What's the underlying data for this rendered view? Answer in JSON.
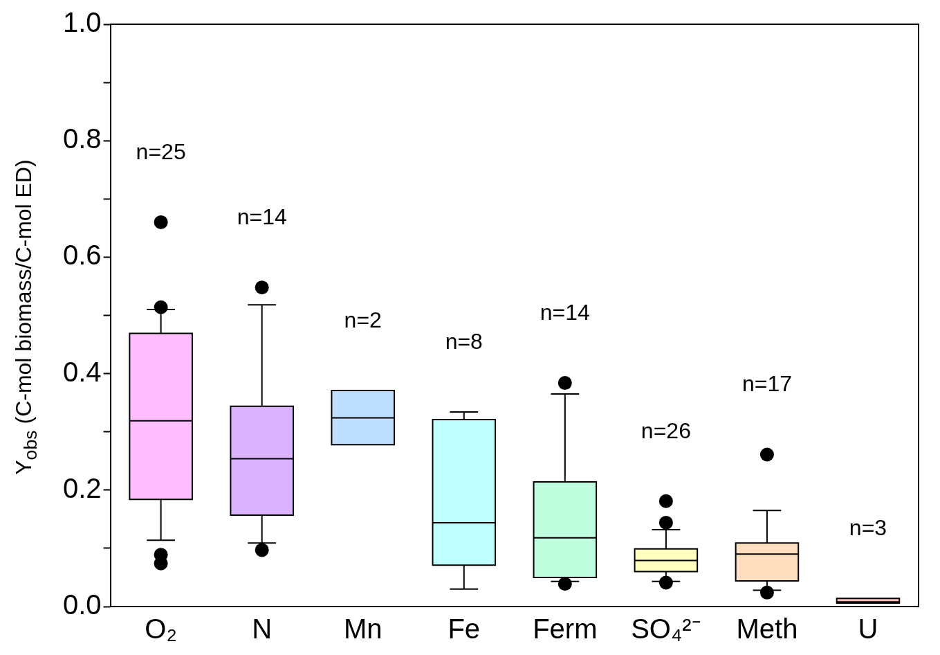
{
  "chart_data": {
    "type": "box",
    "ylabel": "Y$_{obs}$ (C-mol biomass/C-mol ED)",
    "categories": [
      "O₂",
      "N",
      "Mn",
      "Fe",
      "Ferm",
      "SO₄²⁻",
      "Meth",
      "U"
    ],
    "colors": [
      "#ffbfff",
      "#dbb3ff",
      "#bfdfff",
      "#bfffff",
      "#bfffdf",
      "#ffffbf",
      "#ffdfbf",
      "#ffbfbf"
    ],
    "boxes": [
      {
        "low": 0.114,
        "q1": 0.184,
        "median": 0.319,
        "q3": 0.469,
        "high": 0.51,
        "outliers": [
          0.66,
          0.514,
          0.089,
          0.074
        ]
      },
      {
        "low": 0.109,
        "q1": 0.157,
        "median": 0.254,
        "q3": 0.344,
        "high": 0.518,
        "outliers": [
          0.548,
          0.097
        ]
      },
      {
        "low": 0.278,
        "q1": 0.278,
        "median": 0.324,
        "q3": 0.371,
        "high": 0.371
      },
      {
        "low": 0.03,
        "q1": 0.071,
        "median": 0.144,
        "q3": 0.321,
        "high": 0.334
      },
      {
        "low": 0.043,
        "q1": 0.05,
        "median": 0.118,
        "q3": 0.214,
        "high": 0.365,
        "outliers": [
          0.384,
          0.039
        ]
      },
      {
        "low": 0.043,
        "q1": 0.06,
        "median": 0.079,
        "q3": 0.099,
        "high": 0.132,
        "outliers": [
          0.181,
          0.144,
          0.041
        ]
      },
      {
        "low": 0.028,
        "q1": 0.044,
        "median": 0.09,
        "q3": 0.109,
        "high": 0.165,
        "outliers": [
          0.261,
          0.024
        ]
      },
      {
        "low": 0.006,
        "q1": 0.006,
        "median": 0.008,
        "q3": 0.014,
        "high": 0.014
      }
    ],
    "annotations": [
      "n=25",
      "n=14",
      "n=2",
      "n=8",
      "n=14",
      "n=26",
      "n=17",
      "n=3"
    ],
    "ylim": [
      0,
      1
    ],
    "yticks": [
      {
        "value": 0,
        "label": "0.0"
      },
      {
        "value": 0.1,
        "label": null
      },
      {
        "value": 0.2,
        "label": "0.2"
      },
      {
        "value": 0.3,
        "label": null
      },
      {
        "value": 0.4,
        "label": "0.4"
      },
      {
        "value": 0.5,
        "label": null
      },
      {
        "value": 0.6,
        "label": "0.6"
      },
      {
        "value": 0.7,
        "label": null
      },
      {
        "value": 0.8,
        "label": "0.8"
      },
      {
        "value": 0.9,
        "label": null
      },
      {
        "value": 1,
        "label": "1.0"
      }
    ],
    "grid": false,
    "legend": false
  }
}
